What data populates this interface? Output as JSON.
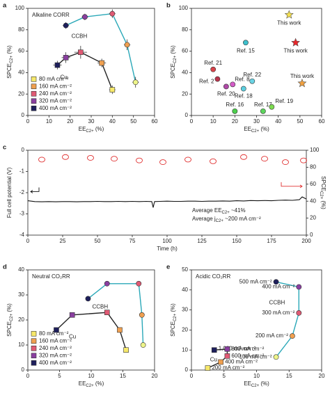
{
  "chart_data": [
    {
      "type": "scatter",
      "panel": "a",
      "title": "Alkaline CORR",
      "xlabel": {
        "text": "EE",
        "sub": "C2+",
        "tail": " (%)"
      },
      "ylabel": {
        "text": "SPCE",
        "sub": "C2+",
        "tail": " (%)"
      },
      "xlim": [
        0,
        60
      ],
      "xticks": [
        0,
        10,
        20,
        30,
        40,
        50,
        60
      ],
      "ylim": [
        0,
        100
      ],
      "yticks": [
        0,
        20,
        40,
        60,
        80,
        100
      ],
      "series": [
        {
          "name": "CCBH",
          "marker": "circle",
          "line_color": "#2aa8b8",
          "x": [
            18,
            27,
            40,
            47,
            51
          ],
          "values": [
            84,
            92,
            95,
            66,
            31
          ],
          "xerr": [
            1.5,
            1.5,
            1.5,
            1.5,
            1.5
          ],
          "yerr": [
            3,
            3,
            4,
            5,
            5
          ],
          "colors": [
            "#1e1f5c",
            "#8a3fa0",
            "#e05a74",
            "#f0a050",
            "#eef58a"
          ]
        },
        {
          "name": "Cu",
          "marker": "square",
          "line_color": "#222222",
          "x": [
            14,
            18,
            25,
            35,
            40
          ],
          "values": [
            47,
            54,
            59,
            49,
            24
          ],
          "xerr": [
            2,
            2,
            3,
            2,
            1.5
          ],
          "yerr": [
            4,
            5,
            6,
            4,
            4
          ],
          "colors": [
            "#1e1f5c",
            "#8a3fa0",
            "#e05a74",
            "#f0a050",
            "#f7e96b"
          ]
        }
      ],
      "legend": {
        "labels": [
          "80 mA cm⁻²",
          "160 mA cm⁻²",
          "240 mA cm⁻²",
          "320 mA cm⁻²",
          "400 mA cm⁻²"
        ],
        "colors": [
          "#f7e96b",
          "#f0a050",
          "#e05a74",
          "#8a3fa0",
          "#1e1f5c"
        ],
        "position": "lower left"
      }
    },
    {
      "type": "scatter",
      "panel": "b",
      "xlabel": {
        "text": "EE",
        "sub": "C2+",
        "tail": " (%)"
      },
      "ylabel": {
        "text": "SPCE",
        "sub": "C2+",
        "tail": " (%)"
      },
      "xlim": [
        0,
        60
      ],
      "xticks": [
        0,
        10,
        20,
        30,
        40,
        50,
        60
      ],
      "ylim": [
        0,
        100
      ],
      "yticks": [
        0,
        20,
        40,
        60,
        80,
        100
      ],
      "series": [
        {
          "name": "Ref. 15",
          "marker": "circle",
          "x": [
            25
          ],
          "values": [
            68
          ],
          "colors": [
            "#3ec0cc"
          ]
        },
        {
          "name": "Ref. 21",
          "marker": "circle",
          "x": [
            10
          ],
          "values": [
            43
          ],
          "colors": [
            "#d9434a"
          ]
        },
        {
          "name": "Ref. 2",
          "marker": "circle",
          "x": [
            12
          ],
          "values": [
            34
          ],
          "colors": [
            "#b8344c"
          ]
        },
        {
          "name": "Ref. 8",
          "marker": "circle",
          "x": [
            19
          ],
          "values": [
            29
          ],
          "colors": [
            "#d45cc8"
          ]
        },
        {
          "name": "Ref. 20",
          "marker": "circle",
          "x": [
            16
          ],
          "values": [
            27
          ],
          "colors": [
            "#b04aa8"
          ]
        },
        {
          "name": "Ref. 22",
          "marker": "circle",
          "x": [
            28
          ],
          "values": [
            32
          ],
          "colors": [
            "#6ad4e4"
          ]
        },
        {
          "name": "Ref. 18",
          "marker": "circle",
          "x": [
            24
          ],
          "values": [
            25
          ],
          "colors": [
            "#5ccfe0"
          ]
        },
        {
          "name": "Ref. 16",
          "marker": "circle",
          "x": [
            20
          ],
          "values": [
            4
          ],
          "colors": [
            "#4ccf4c"
          ]
        },
        {
          "name": "Ref. 17",
          "marker": "circle",
          "x": [
            33
          ],
          "values": [
            4
          ],
          "colors": [
            "#5cd55c"
          ]
        },
        {
          "name": "Ref. 19",
          "marker": "circle",
          "x": [
            37
          ],
          "values": [
            8
          ],
          "colors": [
            "#7ddc50"
          ]
        },
        {
          "name": "This work",
          "marker": "star",
          "x": [
            45
          ],
          "values": [
            94
          ],
          "colors": [
            "#f5e050"
          ]
        },
        {
          "name": "This work",
          "marker": "star",
          "x": [
            48
          ],
          "values": [
            68
          ],
          "colors": [
            "#e8262a"
          ]
        },
        {
          "name": "This work",
          "marker": "star",
          "x": [
            51
          ],
          "values": [
            30
          ],
          "colors": [
            "#f0a040"
          ]
        }
      ]
    },
    {
      "type": "line",
      "panel": "c",
      "xlabel": {
        "text": "Time (h)",
        "sub": "",
        "tail": ""
      },
      "ylabel": {
        "text": "Full cell potential (V)",
        "sub": "",
        "tail": ""
      },
      "y2label": {
        "text": "SPCE",
        "sub": "C2+",
        "tail": " (%)"
      },
      "xlim": [
        0,
        200
      ],
      "xticks": [
        0,
        25,
        50,
        75,
        100,
        125,
        150,
        175,
        200
      ],
      "ylim": [
        -4,
        0
      ],
      "yticks": [
        -4,
        -3,
        -2,
        -1,
        0
      ],
      "y2lim": [
        0,
        100
      ],
      "y2ticks": [
        0,
        20,
        40,
        60,
        80,
        100
      ],
      "series": [
        {
          "name": "Full cell potential",
          "color": "#111111",
          "x": [
            0,
            5,
            10,
            15,
            20,
            25,
            30,
            35,
            40,
            45,
            50,
            55,
            60,
            65,
            70,
            75,
            80,
            85,
            89,
            90,
            91,
            95,
            100,
            105,
            110,
            115,
            120,
            125,
            130,
            135,
            140,
            145,
            150,
            155,
            160,
            165,
            170,
            175,
            180,
            185,
            190,
            195,
            197,
            200
          ],
          "values": [
            -2.38,
            -2.42,
            -2.43,
            -2.42,
            -2.43,
            -2.42,
            -2.42,
            -2.43,
            -2.42,
            -2.42,
            -2.41,
            -2.42,
            -2.42,
            -2.41,
            -2.42,
            -2.41,
            -2.42,
            -2.41,
            -2.42,
            -2.7,
            -2.42,
            -2.41,
            -2.4,
            -2.41,
            -2.41,
            -2.4,
            -2.4,
            -2.41,
            -2.4,
            -2.4,
            -2.39,
            -2.4,
            -2.38,
            -2.39,
            -2.37,
            -2.38,
            -2.37,
            -2.38,
            -2.36,
            -2.35,
            -2.36,
            -2.33,
            -2.2,
            -2.3
          ]
        },
        {
          "name": "SPCE",
          "axis": "y2",
          "color": "#e03030",
          "marker": "open-circle",
          "x": [
            10,
            27,
            45,
            62,
            80,
            97,
            115,
            133,
            155,
            170,
            185,
            198
          ],
          "values": [
            89,
            92,
            91,
            90,
            88,
            86,
            89,
            87,
            92,
            90,
            86,
            88
          ]
        }
      ],
      "annotations": [
        {
          "text": "Average EE",
          "sub": "C2+",
          "tail": " ~41%"
        },
        {
          "text": "Average j",
          "sub": "C2+",
          "tail": " ~200 mA cm⁻²"
        }
      ]
    },
    {
      "type": "scatter",
      "panel": "d",
      "title": "Neutral CO₂RR",
      "xlabel": {
        "text": "EE",
        "sub": "C2+",
        "tail": " (%)"
      },
      "ylabel": {
        "text": "SPCE",
        "sub": "C2+",
        "tail": " (%)"
      },
      "xlim": [
        0,
        20
      ],
      "xticks": [
        0,
        5,
        10,
        15,
        20
      ],
      "ylim": [
        0,
        40
      ],
      "yticks": [
        0,
        10,
        20,
        30,
        40
      ],
      "series": [
        {
          "name": "CCBH",
          "marker": "circle",
          "line_color": "#2aa8b8",
          "x": [
            9.5,
            12.5,
            17.5,
            18,
            18.2
          ],
          "values": [
            28.5,
            34.5,
            34.5,
            22,
            10
          ],
          "colors": [
            "#1e1f5c",
            "#8a3fa0",
            "#e05a74",
            "#f0a050",
            "#eef58a"
          ]
        },
        {
          "name": "Cu",
          "marker": "square",
          "line_color": "#222222",
          "x": [
            4.5,
            7,
            12.5,
            14.5,
            15.5
          ],
          "values": [
            16,
            22,
            23,
            16,
            8
          ],
          "colors": [
            "#1e1f5c",
            "#8a3fa0",
            "#e05a74",
            "#f0a050",
            "#f7e96b"
          ]
        }
      ],
      "legend": {
        "labels": [
          "80 mA cm⁻²",
          "160 mA cm⁻²",
          "240 mA cm⁻²",
          "320 mA cm⁻²",
          "400 mA cm⁻²"
        ],
        "colors": [
          "#f7e96b",
          "#f0a050",
          "#e05a74",
          "#8a3fa0",
          "#1e1f5c"
        ],
        "position": "lower left"
      }
    },
    {
      "type": "scatter",
      "panel": "e",
      "title": "Acidic CO₂RR",
      "xlabel": {
        "text": "EE",
        "sub": "C2+",
        "tail": " (%)"
      },
      "ylabel": {
        "text": "SPCE",
        "sub": "C2+",
        "tail": " (%)"
      },
      "xlim": [
        0,
        20
      ],
      "xticks": [
        0,
        5,
        10,
        15,
        20
      ],
      "ylim": [
        0,
        50
      ],
      "yticks": [
        0,
        10,
        20,
        30,
        40,
        50
      ],
      "series": [
        {
          "name": "CCBH",
          "marker": "circle",
          "line_color": "#2aa8b8",
          "x": [
            13,
            16.5,
            16.5,
            15.5,
            13
          ],
          "values": [
            44,
            41.5,
            28.5,
            17,
            6.5
          ],
          "colors": [
            "#1e1f5c",
            "#8a3fa0",
            "#e05a74",
            "#f0a050",
            "#eef58a"
          ],
          "point_labels": [
            "500 mA cm⁻²",
            "400 mA cm⁻²",
            "300 mA cm⁻²",
            "200 mA cm⁻²",
            "100 mA cm⁻²"
          ]
        },
        {
          "name": "Cu",
          "marker": "square",
          "line_color": "#222222",
          "x": [
            3.5,
            5.5,
            5.5,
            4.5,
            2.5
          ],
          "values": [
            10,
            10.5,
            7,
            4,
            1
          ],
          "colors": [
            "#1e1f5c",
            "#8a3fa0",
            "#e05a74",
            "#f0a050",
            "#f7e96b"
          ],
          "point_labels": [
            "1,000 mA cm⁻²",
            "800 mA cm⁻²",
            "600 mA cm⁻²",
            "400 mA cm⁻²",
            "200 mA cm⁻²"
          ]
        }
      ]
    }
  ]
}
